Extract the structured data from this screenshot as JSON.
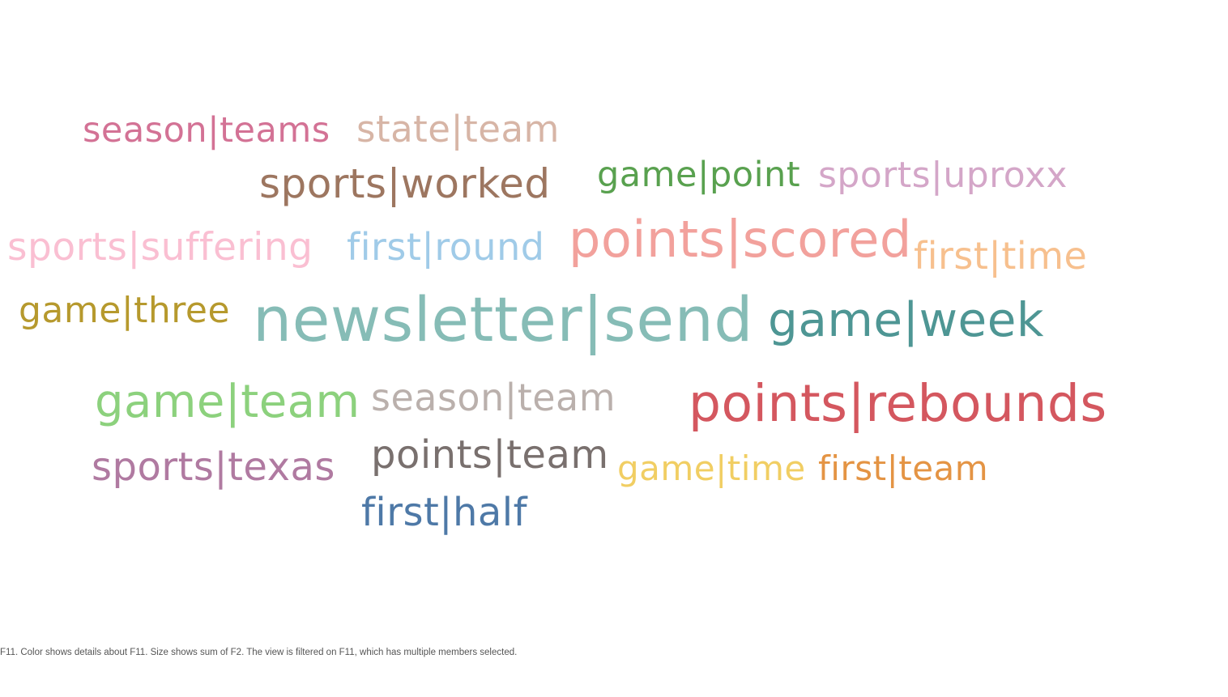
{
  "chart_data": {
    "type": "wordcloud",
    "words": [
      {
        "text": "newsletter|send",
        "color": "#86bcb6"
      },
      {
        "text": "points|rebounds",
        "color": "#d4575f"
      },
      {
        "text": "points|scored",
        "color": "#f2a19c"
      },
      {
        "text": "game|week",
        "color": "#4e9694"
      },
      {
        "text": "game|team",
        "color": "#8cd17d"
      },
      {
        "text": "sports|worked",
        "color": "#9d7660"
      },
      {
        "text": "sports|texas",
        "color": "#b07aa1"
      },
      {
        "text": "points|team",
        "color": "#79706e"
      },
      {
        "text": "first|half",
        "color": "#4e79a7"
      },
      {
        "text": "sports|suffering",
        "color": "#fabfd2"
      },
      {
        "text": "first|round",
        "color": "#a0cbe8"
      },
      {
        "text": "first|time",
        "color": "#f7c08e"
      },
      {
        "text": "season|team",
        "color": "#bab0ac"
      },
      {
        "text": "sports|uproxx",
        "color": "#d4a6c8"
      },
      {
        "text": "state|team",
        "color": "#d7b5a6"
      },
      {
        "text": "game|three",
        "color": "#b6992d"
      },
      {
        "text": "season|teams",
        "color": "#d37295"
      },
      {
        "text": "game|point",
        "color": "#59a14f"
      },
      {
        "text": "game|time",
        "color": "#f1ce63"
      },
      {
        "text": "first|team",
        "color": "#e49444"
      }
    ]
  },
  "caption": "F11.  Color shows details about F11.  Size shows sum of F2. The view is filtered on F11, which has multiple members selected."
}
